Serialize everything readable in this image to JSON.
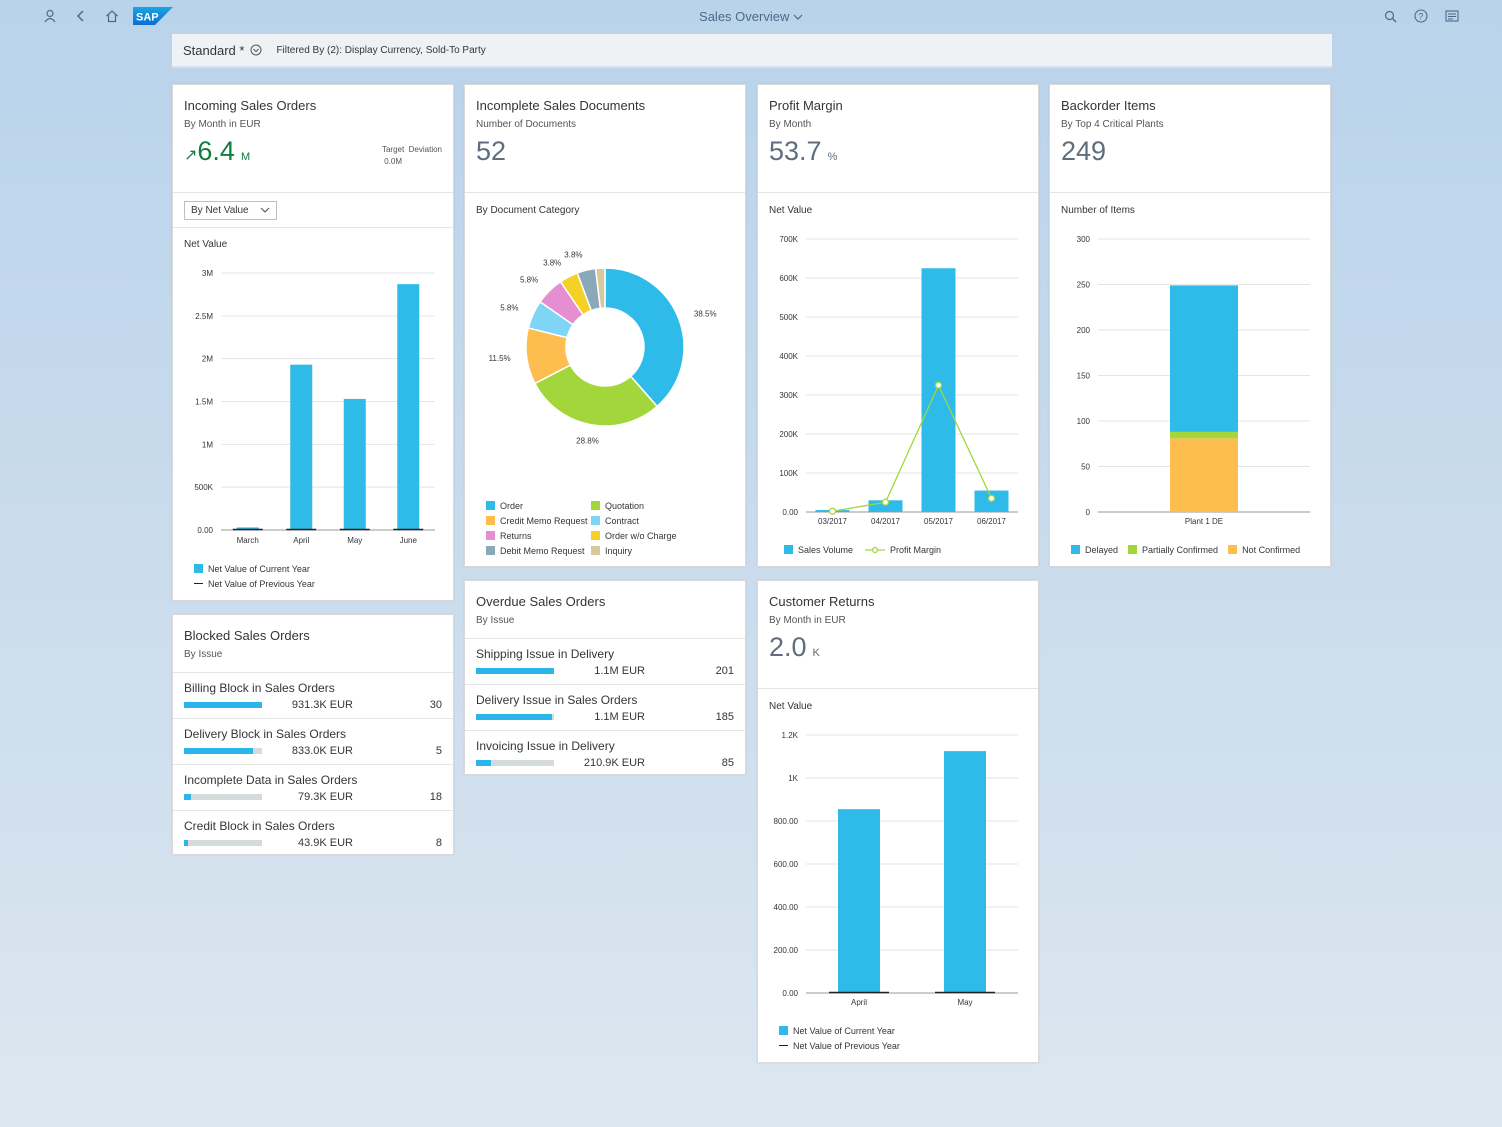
{
  "shell": {
    "title": "Sales Overview",
    "logo_text": "SAP",
    "icons": [
      "user-icon",
      "back-icon",
      "home-icon",
      "search-icon",
      "help-icon",
      "notifications-icon"
    ]
  },
  "filterbar": {
    "variant": "Standard *",
    "filtered": "Filtered By (2): Display Currency, Sold-To Party"
  },
  "incoming": {
    "title": "Incoming Sales Orders",
    "subtitle": "By Month in EUR",
    "kpi": "6.4",
    "unit": "M",
    "target_label": "Target",
    "deviation_label": "Deviation",
    "deviation_value": "0.0M",
    "dropdown": "By Net Value",
    "chart_title": "Net Value",
    "legend_current": "Net Value of Current Year",
    "legend_previous": "Net Value of Previous Year"
  },
  "incomplete": {
    "title": "Incomplete Sales Documents",
    "subtitle": "Number of Documents",
    "kpi": "52",
    "chart_title": "By Document Category"
  },
  "profit": {
    "title": "Profit Margin",
    "subtitle": "By Month",
    "kpi": "53.7",
    "unit": "%",
    "chart_title": "Net Value",
    "legend_bar": "Sales Volume",
    "legend_line": "Profit Margin"
  },
  "backorder": {
    "title": "Backorder Items",
    "subtitle": "By Top 4 Critical Plants",
    "kpi": "249",
    "chart_title": "Number of Items"
  },
  "blocked": {
    "title": "Blocked Sales Orders",
    "subtitle": "By Issue",
    "rows": [
      {
        "label": "Billing Block in Sales Orders",
        "amount": "931.3K EUR",
        "count": "30",
        "fraction": 1.0
      },
      {
        "label": "Delivery Block in Sales Orders",
        "amount": "833.0K EUR",
        "count": "5",
        "fraction": 0.89
      },
      {
        "label": "Incomplete Data in Sales Orders",
        "amount": "79.3K EUR",
        "count": "18",
        "fraction": 0.085
      },
      {
        "label": "Credit Block in Sales Orders",
        "amount": "43.9K EUR",
        "count": "8",
        "fraction": 0.047
      }
    ]
  },
  "overdue": {
    "title": "Overdue Sales Orders",
    "subtitle": "By Issue",
    "rows": [
      {
        "label": "Shipping Issue in Delivery",
        "amount": "1.1M EUR",
        "count": "201",
        "fraction": 1.0
      },
      {
        "label": "Delivery Issue in Sales Orders",
        "amount": "1.1M EUR",
        "count": "185",
        "fraction": 0.97
      },
      {
        "label": "Invoicing Issue in Delivery",
        "amount": "210.9K EUR",
        "count": "85",
        "fraction": 0.19
      }
    ]
  },
  "returns": {
    "title": "Customer Returns",
    "subtitle": "By Month in EUR",
    "kpi": "2.0",
    "unit": "K",
    "chart_title": "Net Value",
    "legend_current": "Net Value of Current Year",
    "legend_previous": "Net Value of Previous Year"
  },
  "colors": {
    "blue": "#2fbbea",
    "green": "#a2d63a",
    "orange": "#fdbe4f",
    "lightblue": "#7fd5f6",
    "pink": "#e58ed2",
    "yellow": "#f6d125",
    "steel": "#8aa8b8",
    "beige": "#d7c99c"
  },
  "chart_data": [
    {
      "id": "incoming",
      "type": "bar",
      "categories": [
        "March",
        "April",
        "May",
        "June"
      ],
      "series": [
        {
          "name": "Net Value of Current Year",
          "values": [
            30000,
            1930000,
            1530000,
            2870000
          ]
        },
        {
          "name": "Net Value of Previous Year",
          "values": [
            0,
            0,
            0,
            0
          ]
        }
      ],
      "ylim": [
        0,
        3000000
      ],
      "yticks": [
        0,
        500000,
        1000000,
        1500000,
        2000000,
        2500000,
        3000000
      ],
      "ytick_labels": [
        "0.00",
        "500K",
        "1M",
        "1.5M",
        "2M",
        "2.5M",
        "3M"
      ],
      "ylabel": "Net Value"
    },
    {
      "id": "incomplete",
      "type": "pie",
      "title": "By Document Category",
      "labels": [
        "Order",
        "Quotation",
        "Credit Memo Request",
        "Contract",
        "Returns",
        "Order w/o Charge",
        "Debit Memo Request",
        "Inquiry"
      ],
      "values": [
        38.5,
        28.8,
        11.5,
        5.8,
        5.8,
        3.8,
        3.8,
        1.9
      ],
      "value_labels": [
        "38.5%",
        "28.8%",
        "11.5%",
        "5.8%",
        "5.8%",
        "3.8%",
        "3.8%",
        ""
      ],
      "slice_order": [
        "Order",
        "Quotation",
        "Credit Memo Request",
        "Contract",
        "Returns",
        "Order w/o Charge",
        "Debit Memo Request",
        "Inquiry"
      ]
    },
    {
      "id": "profit",
      "type": "bar",
      "categories": [
        "03/2017",
        "04/2017",
        "05/2017",
        "06/2017"
      ],
      "series": [
        {
          "name": "Sales Volume",
          "values": [
            5000,
            30000,
            625000,
            55000
          ]
        },
        {
          "name": "Profit Margin",
          "values": [
            2000,
            25000,
            325000,
            35000
          ]
        }
      ],
      "ylim": [
        0,
        700000
      ],
      "yticks": [
        0,
        100000,
        200000,
        300000,
        400000,
        500000,
        600000,
        700000
      ],
      "ytick_labels": [
        "0.00",
        "100K",
        "200K",
        "300K",
        "400K",
        "500K",
        "600K",
        "700K"
      ],
      "ylabel": "Net Value"
    },
    {
      "id": "backorder",
      "type": "bar",
      "categories": [
        "Plant 1 DE"
      ],
      "series": [
        {
          "name": "Not Confirmed",
          "values": [
            81
          ]
        },
        {
          "name": "Partially Confirmed",
          "values": [
            7
          ]
        },
        {
          "name": "Delayed",
          "values": [
            161
          ]
        }
      ],
      "legend": [
        "Delayed",
        "Partially Confirmed",
        "Not Confirmed"
      ],
      "ylim": [
        0,
        300
      ],
      "yticks": [
        0,
        50,
        100,
        150,
        200,
        250,
        300
      ],
      "ytick_labels": [
        "0",
        "50",
        "100",
        "150",
        "200",
        "250",
        "300"
      ],
      "ylabel": "Number of Items"
    },
    {
      "id": "returns",
      "type": "bar",
      "categories": [
        "April",
        "May"
      ],
      "series": [
        {
          "name": "Net Value of Current Year",
          "values": [
            855,
            1125
          ]
        },
        {
          "name": "Net Value of Previous Year",
          "values": [
            0,
            0
          ]
        }
      ],
      "ylim": [
        0,
        1200
      ],
      "yticks": [
        0,
        200,
        400,
        600,
        800,
        1000,
        1200
      ],
      "ytick_labels": [
        "0.00",
        "200.00",
        "400.00",
        "600.00",
        "800.00",
        "1K",
        "1.2K"
      ],
      "ylabel": "Net Value"
    }
  ]
}
